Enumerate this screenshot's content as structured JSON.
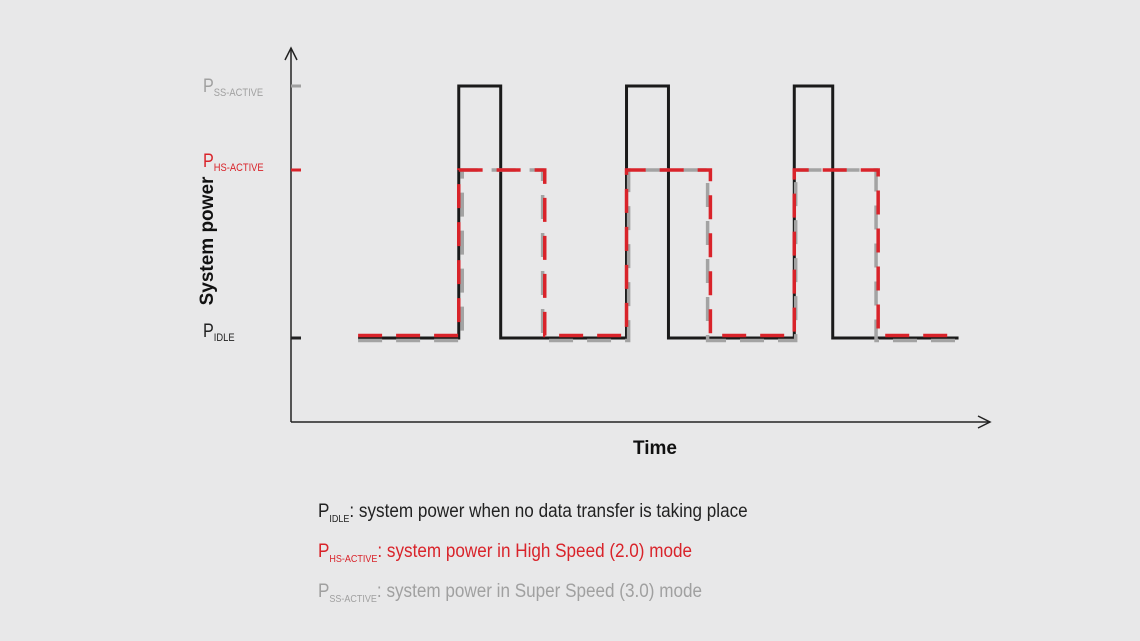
{
  "chart_data": {
    "type": "line",
    "title": "",
    "xlabel": "Time",
    "ylabel": "System power",
    "xlim": [
      0,
      10
    ],
    "ylim": [
      -1,
      3.5
    ],
    "y_levels": [
      {
        "main": "P",
        "sub": "SS-ACTIVE",
        "value": 3,
        "color": "#a0a0a0"
      },
      {
        "main": "P",
        "sub": "HS-ACTIVE",
        "value": 2,
        "color": "#d9232a"
      },
      {
        "main": "P",
        "sub": "IDLE",
        "value": 0,
        "color": "#222222"
      }
    ],
    "series": [
      {
        "style": "solid",
        "color": "#1a1a1a",
        "x": [
          0.96,
          2.4,
          2.4,
          3.0,
          3.0,
          4.8,
          4.8,
          5.4,
          5.4,
          7.2,
          7.2,
          7.75,
          7.75,
          9.55
        ],
        "y": [
          0,
          0,
          3,
          3,
          0,
          0,
          3,
          3,
          0,
          0,
          3,
          3,
          0,
          0
        ]
      },
      {
        "style": "dashed",
        "color": "#a3a3a3",
        "x": [
          0.96,
          2.45,
          2.45,
          3.6,
          3.6,
          4.83,
          4.83,
          5.96,
          5.96,
          7.22,
          7.22,
          8.37,
          8.37,
          9.55
        ],
        "y": [
          -0.03,
          -0.03,
          2,
          2,
          -0.03,
          -0.03,
          2,
          2,
          -0.03,
          -0.03,
          2,
          2,
          -0.03,
          -0.03
        ]
      },
      {
        "style": "dashed",
        "color": "#d9232a",
        "x": [
          0.96,
          2.4,
          2.4,
          3.63,
          3.63,
          4.8,
          4.8,
          6.0,
          6.0,
          7.2,
          7.2,
          8.4,
          8.4,
          9.55
        ],
        "y": [
          0.03,
          0.03,
          2,
          2,
          0.03,
          0.03,
          2,
          2,
          0.03,
          0.03,
          2,
          2,
          0.03,
          0.03
        ]
      }
    ],
    "legend": [
      {
        "main": "P",
        "sub": "IDLE",
        "text": ": system power when no data transfer is taking place",
        "color": "#222222"
      },
      {
        "main": "P",
        "sub": "HS-ACTIVE",
        "text": ": system power in High Speed (2.0) mode",
        "color": "#d9232a"
      },
      {
        "main": "P",
        "sub": "SS-ACTIVE",
        "text": ": system power in Super Speed (3.0) mode",
        "color": "#a0a0a0"
      }
    ],
    "grid": false
  }
}
